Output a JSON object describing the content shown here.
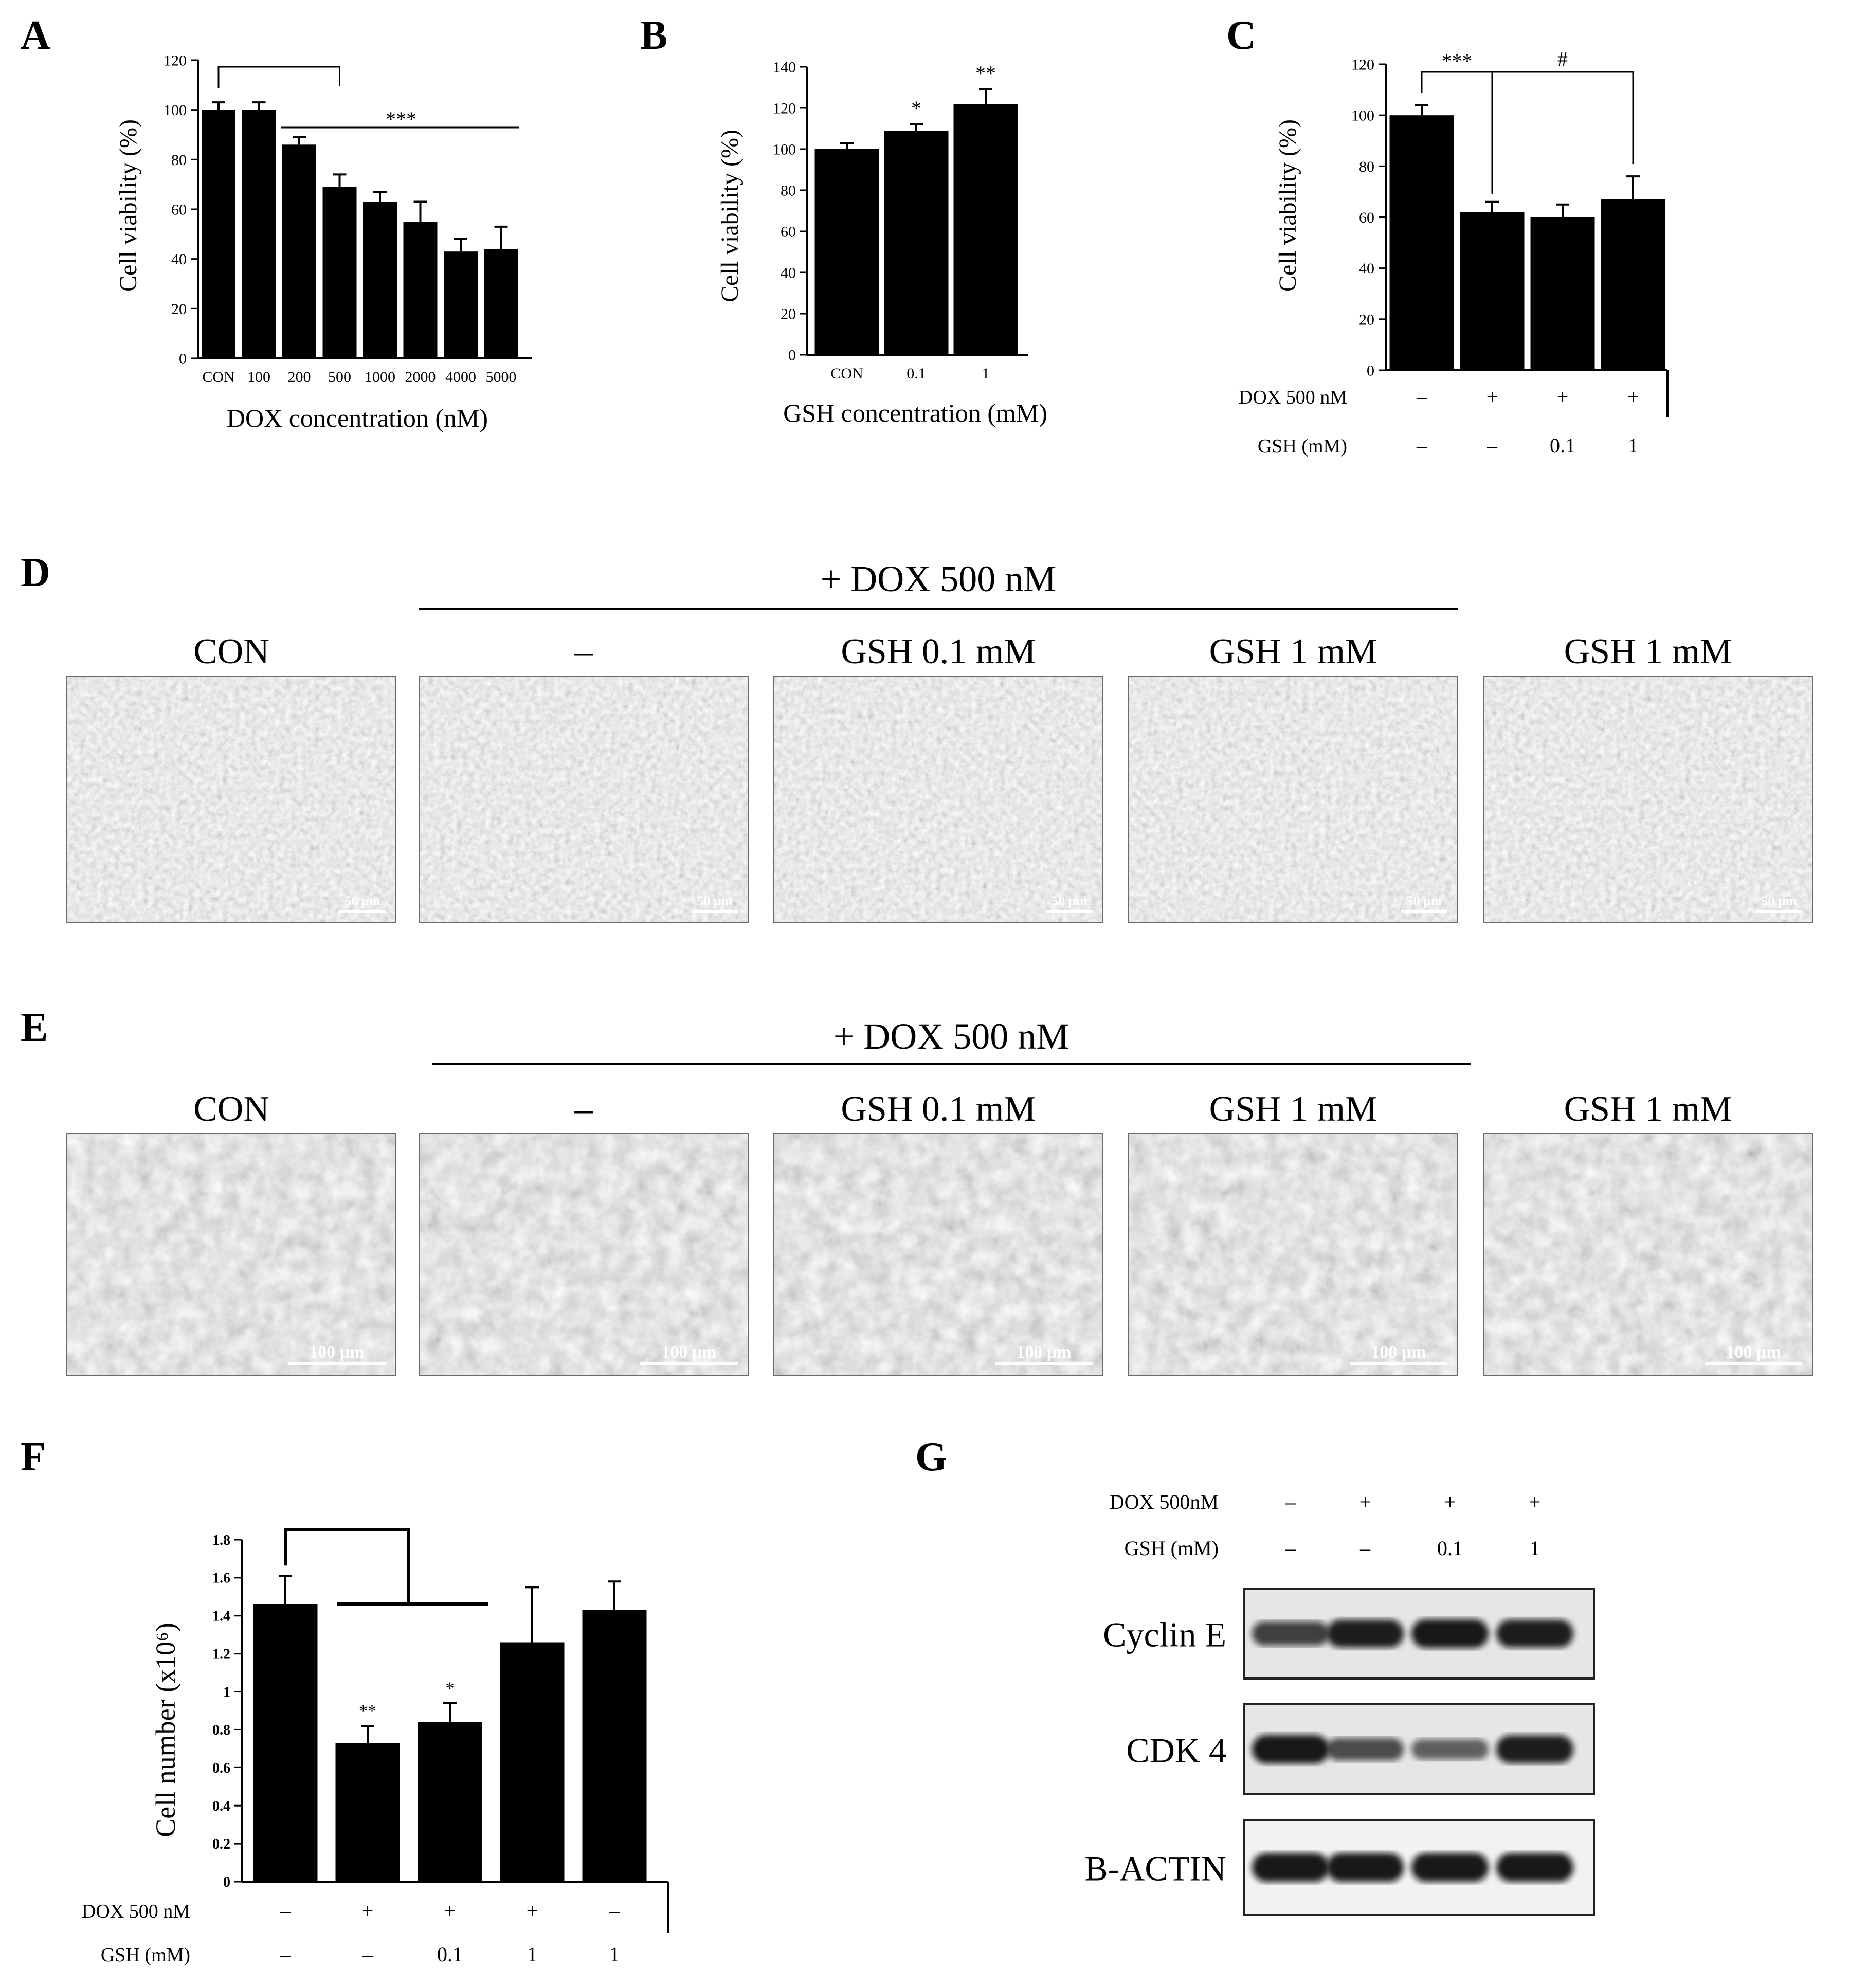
{
  "panels": {
    "A": {
      "letter": "A",
      "chart_data": {
        "type": "bar",
        "ylabel": "Cell viability (%)",
        "xlabel": "DOX concentration (nM)",
        "ylim": [
          0,
          120
        ],
        "yticks": [
          0,
          20,
          40,
          60,
          80,
          100,
          120
        ],
        "categories": [
          "CON",
          "100",
          "200",
          "500",
          "1000",
          "2000",
          "4000",
          "5000"
        ],
        "values": [
          100,
          100,
          86,
          69,
          63,
          55,
          43,
          44
        ],
        "errors": [
          3,
          3,
          3,
          5,
          4,
          8,
          5,
          9
        ],
        "annotations": [
          {
            "label": "***",
            "type": "bracket_line",
            "from": 0,
            "to": 3,
            "line_from": 2,
            "line_to": 7
          }
        ]
      }
    },
    "B": {
      "letter": "B",
      "chart_data": {
        "type": "bar",
        "ylabel": "Cell viability (%)",
        "xlabel": "GSH concentration (mM)",
        "ylim": [
          0,
          140
        ],
        "yticks": [
          0,
          20,
          40,
          60,
          80,
          100,
          120,
          140
        ],
        "categories": [
          "CON",
          "0.1",
          "1"
        ],
        "values": [
          100,
          109,
          122
        ],
        "errors": [
          3,
          3,
          7
        ],
        "star_labels": [
          "",
          "*",
          "**"
        ]
      }
    },
    "C": {
      "letter": "C",
      "chart_data": {
        "type": "bar",
        "ylabel": "Cell viability (%)",
        "ylim": [
          0,
          120
        ],
        "yticks": [
          0,
          20,
          40,
          60,
          80,
          100,
          120
        ],
        "values": [
          100,
          62,
          60,
          67
        ],
        "errors": [
          4,
          4,
          5,
          9
        ],
        "row_labels": [
          "DOX 500 nM",
          "GSH (mM)"
        ],
        "rows": [
          [
            "–",
            "+",
            "+",
            "+"
          ],
          [
            "–",
            "–",
            "0.1",
            "1"
          ]
        ],
        "annotations": [
          {
            "label": "***",
            "from": 0,
            "to": 1
          },
          {
            "label": "#",
            "from": 1,
            "to": 3
          }
        ]
      }
    },
    "D": {
      "letter": "D",
      "group_label": "+ DOX 500 nM",
      "titles": [
        "CON",
        "–",
        "GSH 0.1 mM",
        "GSH 1 mM",
        "GSH 1 mM"
      ],
      "scale": "50 µm"
    },
    "E": {
      "letter": "E",
      "group_label": "+ DOX 500 nM",
      "titles": [
        "CON",
        "–",
        "GSH 0.1 mM",
        "GSH 1 mM",
        "GSH 1 mM"
      ],
      "scale": "100 µm"
    },
    "F": {
      "letter": "F",
      "chart_data": {
        "type": "bar",
        "ylabel": "Cell number (x10⁶)",
        "ylim": [
          0,
          1.8
        ],
        "yticks": [
          "0",
          "0.2",
          "0.4",
          "0.6",
          "0.8",
          "1",
          "1.2",
          "1.4",
          "1.6",
          "1.8"
        ],
        "values": [
          1.46,
          0.73,
          0.84,
          1.26,
          1.43
        ],
        "errors": [
          0.15,
          0.09,
          0.1,
          0.29,
          0.15
        ],
        "star_labels": [
          "",
          "**",
          "*",
          "",
          ""
        ],
        "row_labels": [
          "DOX 500 nM",
          "GSH (mM)"
        ],
        "rows": [
          [
            "–",
            "+",
            "+",
            "+",
            "–"
          ],
          [
            "–",
            "–",
            "0.1",
            "1",
            "1"
          ]
        ]
      }
    },
    "G": {
      "letter": "G",
      "row_labels": [
        "DOX 500nM",
        "GSH (mM)"
      ],
      "rows": [
        [
          "–",
          "+",
          "+",
          "+"
        ],
        [
          "–",
          "–",
          "0.1",
          "1"
        ]
      ],
      "blots": [
        {
          "name": "Cyclin E",
          "intensities": [
            0.7,
            0.95,
            1.0,
            0.95
          ]
        },
        {
          "name": "CDK 4",
          "intensities": [
            1.0,
            0.6,
            0.45,
            0.95
          ]
        },
        {
          "name": "B-ACTIN",
          "intensities": [
            1.0,
            1.0,
            1.0,
            1.0
          ]
        }
      ]
    }
  }
}
